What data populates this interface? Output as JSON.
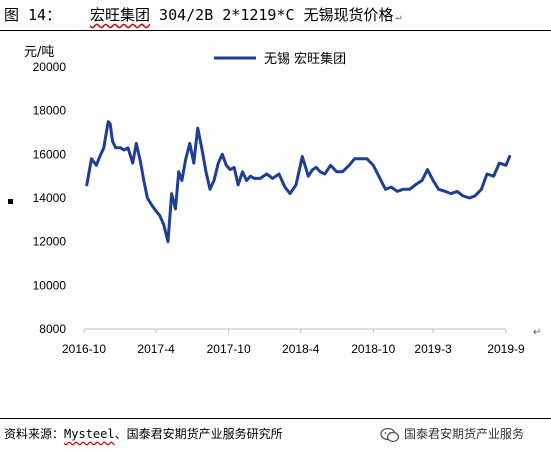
{
  "figure": {
    "label": "图 14：",
    "title": "宏旺集团 304/2B 2*1219*C 无锡现货价格",
    "title_emphasis": "宏旺集团"
  },
  "paragraph_mark": "↵",
  "source": {
    "prefix": "资料来源：",
    "mysteel": "Mysteel",
    "suffix": "、国泰君安期货产业服务研究所"
  },
  "watermark": {
    "icon": "wechat-icon",
    "text": "国泰君安期货产业服务"
  },
  "colors": {
    "line": "#1f3f93",
    "axis": "#bfbfbf",
    "text": "#000000"
  },
  "chart_data": {
    "type": "line",
    "title": "宏旺集团 304/2B 2*1219*C 无锡现货价格",
    "ylabel": "元/吨",
    "xlabel": "",
    "ylim": [
      8000,
      20000
    ],
    "yticks": [
      8000,
      10000,
      12000,
      14000,
      16000,
      18000,
      20000
    ],
    "ytick_labels": [
      "8000",
      "10000",
      "12000",
      "14000",
      "16000",
      "18000",
      "20000"
    ],
    "xlim": [
      "2016-10",
      "2019-9"
    ],
    "xticks": [
      "2016-10",
      "2017-4",
      "2017-10",
      "2018-4",
      "2018-10",
      "2019-3",
      "2019-9"
    ],
    "grid": false,
    "legend_position": "top-center",
    "series": [
      {
        "name": "无锡 宏旺集团",
        "x": [
          "2016-10-08",
          "2016-10-20",
          "2016-11-01",
          "2016-11-10",
          "2016-11-20",
          "2016-12-01",
          "2016-12-06",
          "2016-12-12",
          "2016-12-20",
          "2017-01-01",
          "2017-01-10",
          "2017-01-20",
          "2017-02-01",
          "2017-02-10",
          "2017-02-20",
          "2017-03-01",
          "2017-03-10",
          "2017-03-20",
          "2017-04-01",
          "2017-04-10",
          "2017-04-20",
          "2017-05-01",
          "2017-05-10",
          "2017-05-20",
          "2017-05-28",
          "2017-06-05",
          "2017-06-15",
          "2017-06-25",
          "2017-07-05",
          "2017-07-15",
          "2017-07-25",
          "2017-08-05",
          "2017-08-15",
          "2017-08-25",
          "2017-09-05",
          "2017-09-15",
          "2017-09-25",
          "2017-10-05",
          "2017-10-15",
          "2017-10-25",
          "2017-11-05",
          "2017-11-15",
          "2017-11-25",
          "2017-12-05",
          "2017-12-20",
          "2018-01-05",
          "2018-01-20",
          "2018-02-05",
          "2018-02-20",
          "2018-03-05",
          "2018-03-20",
          "2018-04-05",
          "2018-04-20",
          "2018-05-01",
          "2018-05-10",
          "2018-05-20",
          "2018-06-01",
          "2018-06-15",
          "2018-07-01",
          "2018-07-15",
          "2018-08-01",
          "2018-08-15",
          "2018-09-01",
          "2018-09-15",
          "2018-10-01",
          "2018-10-15",
          "2018-11-01",
          "2018-11-15",
          "2018-12-01",
          "2018-12-15",
          "2019-01-01",
          "2019-01-15",
          "2019-02-01",
          "2019-02-15",
          "2019-03-01",
          "2019-03-15",
          "2019-04-01",
          "2019-04-15",
          "2019-05-01",
          "2019-05-15",
          "2019-06-01",
          "2019-06-15",
          "2019-07-01",
          "2019-07-15",
          "2019-08-01",
          "2019-08-15",
          "2019-09-01",
          "2019-09-10"
        ],
        "y": [
          14600,
          15800,
          15500,
          15900,
          16300,
          17500,
          17400,
          16600,
          16300,
          16300,
          16200,
          16300,
          15600,
          16500,
          15700,
          14800,
          14000,
          13700,
          13400,
          13200,
          12800,
          12000,
          14200,
          13500,
          15200,
          14800,
          15800,
          16500,
          15600,
          17200,
          16300,
          15200,
          14400,
          14800,
          15600,
          16000,
          15500,
          15300,
          15400,
          14600,
          15200,
          14800,
          15000,
          14900,
          14900,
          15100,
          14900,
          15100,
          14500,
          14200,
          14600,
          15900,
          15000,
          15300,
          15400,
          15200,
          15100,
          15500,
          15200,
          15200,
          15500,
          15800,
          15800,
          15800,
          15500,
          15000,
          14400,
          14500,
          14300,
          14400,
          14400,
          14600,
          14800,
          15300,
          14800,
          14400,
          14300,
          14200,
          14300,
          14100,
          14000,
          14100,
          14400,
          15100,
          15000,
          15600,
          15500,
          15900
        ]
      }
    ]
  }
}
